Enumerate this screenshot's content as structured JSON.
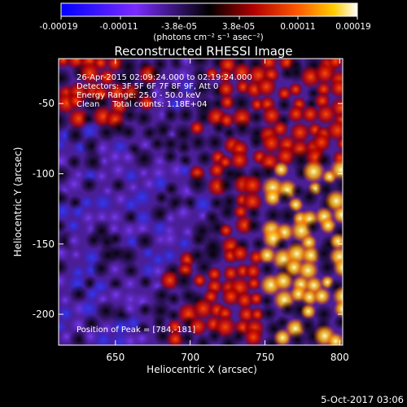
{
  "colorbar": {
    "tick_labels": [
      "-0.00019",
      "-0.00011",
      "-3.8e-05",
      "3.8e-05",
      "0.00011",
      "0.00019"
    ],
    "unit_label": "(photons cm⁻² s⁻¹ asec⁻²)",
    "range": [
      -0.00019,
      0.00019
    ]
  },
  "chart_data": {
    "type": "heatmap",
    "title": "Reconstructed RHESSI Image",
    "xlabel": "Heliocentric X (arcsec)",
    "ylabel": "Heliocentric Y (arcsec)",
    "xlim": [
      612,
      802
    ],
    "ylim": [
      -222,
      -18
    ],
    "x_ticks": [
      650,
      700,
      750,
      800
    ],
    "y_ticks": [
      -50,
      -100,
      -150,
      -200
    ],
    "annotations": [
      "26-Apr-2015 02:09:24.000 to 02:19:24.000",
      "Detectors: 3F 5F 6F 7F 8F 9F, Att 0",
      "Energy Range: 25.0 - 50.0 keV",
      "Clean     Total counts: 1.18E+04"
    ],
    "peak_label": "Position of Peak = [784,-181]",
    "peak_position": [
      784,
      -181
    ]
  },
  "footer": {
    "date": "5-Oct-2017 03:06"
  }
}
